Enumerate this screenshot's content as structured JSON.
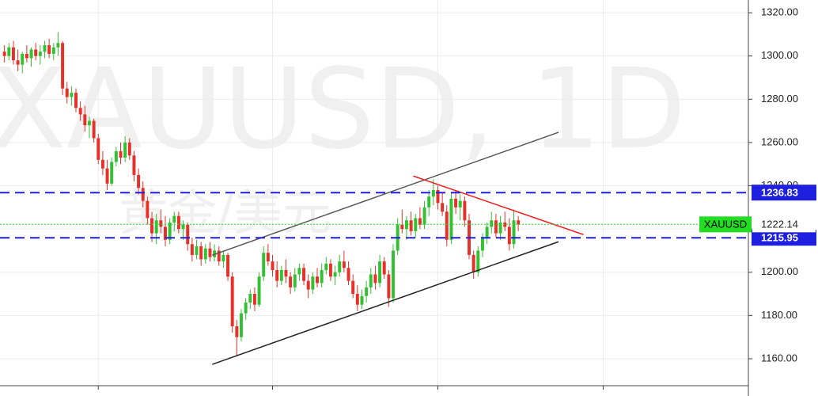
{
  "chart_data": {
    "type": "candlestick",
    "watermark": "XAUUSD, 1D",
    "watermark_sub": "黄金/美元",
    "up_color": "#33c133",
    "down_color": "#e8302a",
    "grid": true,
    "xlim": [
      -1,
      166.5
    ],
    "ylim": [
      1147.9,
      1325.9
    ],
    "xticks": [
      21,
      60,
      97,
      134
    ],
    "yticks": [
      {
        "value": 1160,
        "label": "1160.00"
      },
      {
        "value": 1180,
        "label": "1180.00"
      },
      {
        "value": 1200,
        "label": "1200.00"
      },
      {
        "value": 1220,
        "label": "1220.00"
      },
      {
        "value": 1240,
        "label": "1240.00"
      },
      {
        "value": 1260,
        "label": "1260.00"
      },
      {
        "value": 1280,
        "label": "1280.00"
      },
      {
        "value": 1300,
        "label": "1300.00"
      },
      {
        "value": 1320,
        "label": "1320.00"
      }
    ],
    "ohlc": [
      [
        1302,
        1305,
        1297,
        1300
      ],
      [
        1300,
        1306,
        1298,
        1304
      ],
      [
        1304,
        1307,
        1296,
        1298
      ],
      [
        1298,
        1303,
        1293,
        1296
      ],
      [
        1296,
        1302,
        1292,
        1301
      ],
      [
        1301,
        1305,
        1297,
        1299
      ],
      [
        1299,
        1304,
        1295,
        1303
      ],
      [
        1303,
        1306,
        1298,
        1300
      ],
      [
        1300,
        1305,
        1296,
        1302
      ],
      [
        1302,
        1307,
        1299,
        1305
      ],
      [
        1305,
        1308,
        1299,
        1301
      ],
      [
        1301,
        1306,
        1298,
        1304
      ],
      [
        1304,
        1311,
        1300,
        1306
      ],
      [
        1306,
        1307,
        1282,
        1285
      ],
      [
        1285,
        1288,
        1278,
        1281
      ],
      [
        1281,
        1286,
        1277,
        1283
      ],
      [
        1283,
        1285,
        1274,
        1276
      ],
      [
        1276,
        1279,
        1270,
        1273
      ],
      [
        1273,
        1277,
        1265,
        1268
      ],
      [
        1268,
        1272,
        1262,
        1270
      ],
      [
        1270,
        1271,
        1260,
        1262
      ],
      [
        1262,
        1264,
        1250,
        1252
      ],
      [
        1252,
        1256,
        1245,
        1248
      ],
      [
        1248,
        1252,
        1238,
        1241
      ],
      [
        1241,
        1253,
        1240,
        1251
      ],
      [
        1251,
        1258,
        1249,
        1256
      ],
      [
        1256,
        1260,
        1250,
        1253
      ],
      [
        1253,
        1263,
        1251,
        1260
      ],
      [
        1260,
        1262,
        1252,
        1254
      ],
      [
        1254,
        1256,
        1242,
        1245
      ],
      [
        1245,
        1248,
        1236,
        1239
      ],
      [
        1239,
        1242,
        1230,
        1233
      ],
      [
        1233,
        1235,
        1222,
        1225
      ],
      [
        1225,
        1228,
        1214,
        1218
      ],
      [
        1218,
        1227,
        1213,
        1224
      ],
      [
        1224,
        1229,
        1218,
        1221
      ],
      [
        1221,
        1226,
        1212,
        1215
      ],
      [
        1215,
        1225,
        1213,
        1223
      ],
      [
        1223,
        1228,
        1219,
        1226
      ],
      [
        1226,
        1228,
        1218,
        1220
      ],
      [
        1220,
        1224,
        1215,
        1222
      ],
      [
        1222,
        1223,
        1210,
        1213
      ],
      [
        1213,
        1216,
        1205,
        1208
      ],
      [
        1208,
        1215,
        1206,
        1212
      ],
      [
        1212,
        1214,
        1203,
        1206
      ],
      [
        1206,
        1213,
        1204,
        1211
      ],
      [
        1211,
        1214,
        1205,
        1207
      ],
      [
        1207,
        1213,
        1205,
        1210
      ],
      [
        1210,
        1212,
        1203,
        1205
      ],
      [
        1205,
        1210,
        1202,
        1208
      ],
      [
        1208,
        1209,
        1196,
        1198
      ],
      [
        1198,
        1200,
        1172,
        1175
      ],
      [
        1175,
        1178,
        1161,
        1170
      ],
      [
        1170,
        1183,
        1168,
        1181
      ],
      [
        1181,
        1188,
        1178,
        1186
      ],
      [
        1186,
        1192,
        1183,
        1190
      ],
      [
        1190,
        1193,
        1182,
        1185
      ],
      [
        1185,
        1200,
        1184,
        1198
      ],
      [
        1198,
        1212,
        1196,
        1209
      ],
      [
        1209,
        1213,
        1203,
        1205
      ],
      [
        1205,
        1208,
        1198,
        1201
      ],
      [
        1201,
        1205,
        1193,
        1196
      ],
      [
        1196,
        1203,
        1194,
        1201
      ],
      [
        1201,
        1206,
        1195,
        1198
      ],
      [
        1198,
        1200,
        1190,
        1193
      ],
      [
        1193,
        1202,
        1191,
        1199
      ],
      [
        1199,
        1204,
        1196,
        1202
      ],
      [
        1202,
        1204,
        1194,
        1196
      ],
      [
        1196,
        1199,
        1188,
        1192
      ],
      [
        1192,
        1200,
        1190,
        1198
      ],
      [
        1198,
        1202,
        1193,
        1195
      ],
      [
        1195,
        1204,
        1193,
        1201
      ],
      [
        1201,
        1207,
        1199,
        1204
      ],
      [
        1204,
        1206,
        1196,
        1198
      ],
      [
        1198,
        1203,
        1194,
        1200
      ],
      [
        1200,
        1208,
        1198,
        1205
      ],
      [
        1205,
        1210,
        1200,
        1202
      ],
      [
        1202,
        1205,
        1194,
        1196
      ],
      [
        1196,
        1199,
        1188,
        1190
      ],
      [
        1190,
        1194,
        1182,
        1185
      ],
      [
        1185,
        1192,
        1183,
        1189
      ],
      [
        1189,
        1196,
        1186,
        1193
      ],
      [
        1193,
        1202,
        1190,
        1199
      ],
      [
        1199,
        1203,
        1192,
        1195
      ],
      [
        1195,
        1208,
        1193,
        1205
      ],
      [
        1205,
        1207,
        1197,
        1199
      ],
      [
        1199,
        1201,
        1184,
        1188
      ],
      [
        1188,
        1213,
        1186,
        1210
      ],
      [
        1210,
        1225,
        1208,
        1222
      ],
      [
        1222,
        1229,
        1218,
        1220
      ],
      [
        1220,
        1226,
        1215,
        1224
      ],
      [
        1224,
        1228,
        1217,
        1219
      ],
      [
        1219,
        1227,
        1216,
        1225
      ],
      [
        1225,
        1230,
        1220,
        1222
      ],
      [
        1222,
        1233,
        1220,
        1230
      ],
      [
        1230,
        1238,
        1226,
        1235
      ],
      [
        1235,
        1243,
        1231,
        1238
      ],
      [
        1238,
        1240,
        1229,
        1232
      ],
      [
        1232,
        1237,
        1226,
        1228
      ],
      [
        1228,
        1231,
        1212,
        1215
      ],
      [
        1215,
        1237,
        1213,
        1234
      ],
      [
        1234,
        1238,
        1227,
        1230
      ],
      [
        1230,
        1236,
        1224,
        1233
      ],
      [
        1233,
        1235,
        1221,
        1224
      ],
      [
        1224,
        1227,
        1206,
        1208
      ],
      [
        1208,
        1210,
        1197,
        1200
      ],
      [
        1200,
        1212,
        1198,
        1210
      ],
      [
        1210,
        1218,
        1207,
        1216
      ],
      [
        1216,
        1223,
        1213,
        1221
      ],
      [
        1221,
        1228,
        1218,
        1224
      ],
      [
        1224,
        1227,
        1216,
        1218
      ],
      [
        1218,
        1226,
        1215,
        1223
      ],
      [
        1223,
        1228,
        1219,
        1221
      ],
      [
        1221,
        1225,
        1210,
        1213
      ],
      [
        1213,
        1229,
        1211,
        1224
      ],
      [
        1224,
        1226,
        1219,
        1222.14
      ]
    ],
    "trendlines": [
      {
        "x": [
          46.5,
          124
        ],
        "y": [
          1207.9,
          1264.7
        ],
        "color": "#555555"
      },
      {
        "x": [
          46.5,
          124
        ],
        "y": [
          1157.4,
          1214.1
        ],
        "color": "#222222"
      },
      {
        "x": [
          91.5,
          129.6
        ],
        "y": [
          1244.5,
          1217.4
        ],
        "color": "#ee2222"
      }
    ],
    "levels": [
      {
        "value": 1236.83,
        "color": "#1f1fe0"
      },
      {
        "value": 1215.95,
        "color": "#1f1fe0"
      }
    ],
    "last_price": {
      "name": "XAUUSD",
      "value": 1222.14,
      "color": "#22dd22"
    }
  }
}
